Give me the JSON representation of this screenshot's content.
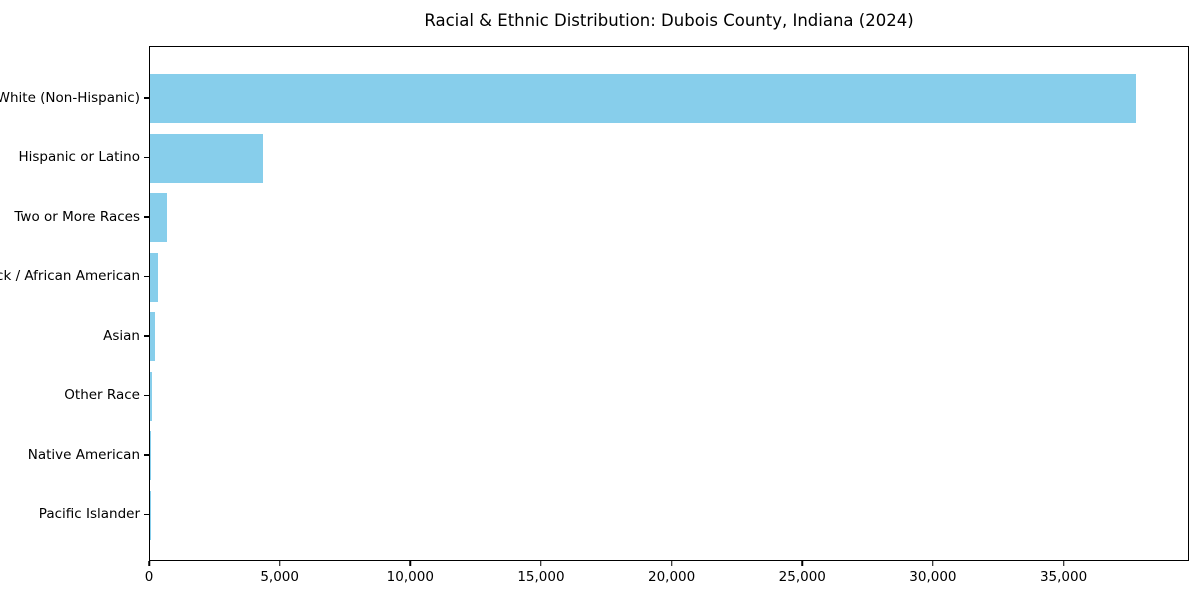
{
  "chart_data": {
    "type": "bar",
    "orientation": "horizontal",
    "title": "Racial & Ethnic Distribution: Dubois County, Indiana (2024)",
    "categories": [
      "White (Non-Hispanic)",
      "Hispanic or Latino",
      "Two or More Races",
      "Black / African American",
      "Asian",
      "Other Race",
      "Native American",
      "Pacific Islander"
    ],
    "values": [
      37800,
      4350,
      650,
      325,
      210,
      75,
      30,
      10
    ],
    "xlabel": "",
    "ylabel": "",
    "xlim": [
      0,
      39800
    ],
    "xticks": [
      0,
      5000,
      10000,
      15000,
      20000,
      25000,
      30000,
      35000
    ],
    "xtick_labels": [
      "0",
      "5,000",
      "10,000",
      "15,000",
      "20,000",
      "25,000",
      "30,000",
      "35,000"
    ],
    "bar_color": "#87CEEB",
    "axis_color": "#000000",
    "background_color": "#ffffff",
    "grid": false,
    "legend": false
  }
}
